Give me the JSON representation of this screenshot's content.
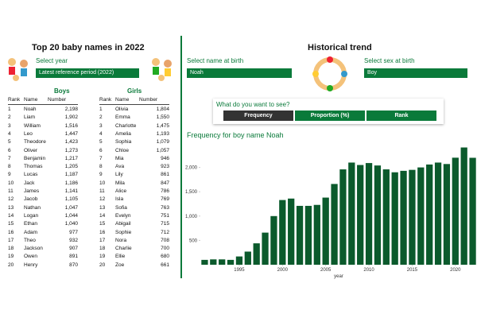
{
  "left": {
    "title": "Top 20 baby names in 2022",
    "select_label": "Select year",
    "select_value": "Latest reference period (2022)",
    "boys": {
      "title": "Boys",
      "columns": [
        "Rank",
        "Name",
        "Number"
      ],
      "rows": [
        [
          1,
          "Noah",
          "2,198"
        ],
        [
          2,
          "Liam",
          "1,902"
        ],
        [
          3,
          "William",
          "1,516"
        ],
        [
          4,
          "Leo",
          "1,447"
        ],
        [
          5,
          "Theodore",
          "1,423"
        ],
        [
          6,
          "Oliver",
          "1,273"
        ],
        [
          7,
          "Benjamin",
          "1,217"
        ],
        [
          8,
          "Thomas",
          "1,205"
        ],
        [
          9,
          "Lucas",
          "1,187"
        ],
        [
          10,
          "Jack",
          "1,186"
        ],
        [
          11,
          "James",
          "1,141"
        ],
        [
          12,
          "Jacob",
          "1,105"
        ],
        [
          13,
          "Nathan",
          "1,047"
        ],
        [
          14,
          "Logan",
          "1,044"
        ],
        [
          15,
          "Ethan",
          "1,040"
        ],
        [
          16,
          "Adam",
          "977"
        ],
        [
          17,
          "Theo",
          "932"
        ],
        [
          18,
          "Jackson",
          "907"
        ],
        [
          19,
          "Owen",
          "891"
        ],
        [
          20,
          "Henry",
          "870"
        ]
      ]
    },
    "girls": {
      "title": "Girls",
      "columns": [
        "Rank",
        "Name",
        "Number"
      ],
      "rows": [
        [
          1,
          "Olivia",
          "1,804"
        ],
        [
          2,
          "Emma",
          "1,550"
        ],
        [
          3,
          "Charlotte",
          "1,475"
        ],
        [
          4,
          "Amelia",
          "1,193"
        ],
        [
          5,
          "Sophia",
          "1,079"
        ],
        [
          6,
          "Chloe",
          "1,057"
        ],
        [
          7,
          "Mia",
          "946"
        ],
        [
          8,
          "Ava",
          "923"
        ],
        [
          9,
          "Lily",
          "861"
        ],
        [
          10,
          "Mila",
          "847"
        ],
        [
          11,
          "Alice",
          "786"
        ],
        [
          12,
          "Isla",
          "769"
        ],
        [
          13,
          "Sofia",
          "763"
        ],
        [
          14,
          "Evelyn",
          "751"
        ],
        [
          15,
          "Abigail",
          "715"
        ],
        [
          16,
          "Sophie",
          "712"
        ],
        [
          17,
          "Nora",
          "708"
        ],
        [
          18,
          "Charlie",
          "700"
        ],
        [
          19,
          "Ellie",
          "680"
        ],
        [
          20,
          "Zoe",
          "661"
        ]
      ]
    }
  },
  "right": {
    "title": "Historical trend",
    "name_label": "Select name at birth",
    "name_value": "Noah",
    "sex_label": "Select sex at birth",
    "sex_value": "Boy",
    "question": "What do you want to see?",
    "tabs": [
      "Frequency",
      "Proportion (%)",
      "Rank"
    ]
  },
  "chart_data": {
    "type": "bar",
    "title": "Frequency for boy name Noah",
    "x_label": "year",
    "color": "#0b5a2c",
    "x": [
      1991,
      1992,
      1993,
      1994,
      1995,
      1996,
      1997,
      1998,
      1999,
      2000,
      2001,
      2002,
      2003,
      2004,
      2005,
      2006,
      2007,
      2008,
      2009,
      2010,
      2011,
      2012,
      2013,
      2014,
      2015,
      2016,
      2017,
      2018,
      2019,
      2020,
      2021,
      2022
    ],
    "values": [
      100,
      110,
      110,
      100,
      170,
      270,
      440,
      660,
      1000,
      1330,
      1360,
      1210,
      1210,
      1230,
      1380,
      1660,
      1960,
      2100,
      2050,
      2090,
      2040,
      1960,
      1900,
      1930,
      1950,
      2000,
      2060,
      2100,
      2070,
      2200,
      2410,
      2198
    ],
    "xlim": [
      1990.5,
      2022.5
    ],
    "xticks": [
      1995,
      2000,
      2005,
      2010,
      2015,
      2020
    ],
    "ylim": [
      0,
      2500
    ],
    "yticks": [
      {
        "value": 500,
        "label": "500"
      },
      {
        "value": 1000,
        "label": "1,000"
      },
      {
        "value": 1500,
        "label": "1,500"
      },
      {
        "value": 2000,
        "label": "2,000"
      }
    ]
  }
}
